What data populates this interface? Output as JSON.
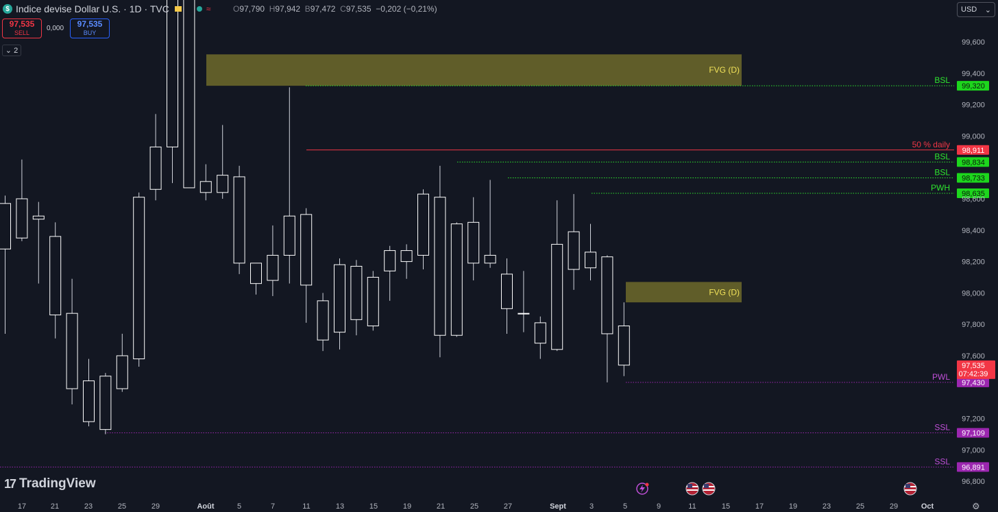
{
  "header": {
    "symbol_badge": "$",
    "title": "Indice devise Dollar U.S. · 1D · TVC",
    "ohlc": {
      "o_label": "O",
      "o": "97,790",
      "h_label": "H",
      "h": "97,942",
      "b_label": "B",
      "b": "97,472",
      "c_label": "C",
      "c": "97,535",
      "change": "−0,202 (−0,21%)"
    }
  },
  "trade": {
    "sell_price": "97,535",
    "sell_label": "SELL",
    "spread": "0,000",
    "buy_price": "97,535",
    "buy_label": "BUY"
  },
  "indicators_toggle": {
    "label": "2"
  },
  "currency_select": {
    "value": "USD"
  },
  "watermark": {
    "text": "TradingView"
  },
  "colors": {
    "background": "#131722",
    "green": "#22ab94",
    "lime": "#2ee62e",
    "red": "#f23645",
    "purple": "#9c27b0",
    "fvg": "#6e6a2a",
    "candle": "#ffffff"
  },
  "chart_data": {
    "type": "candlestick",
    "symbol": "Indice devise Dollar U.S.",
    "interval": "1D",
    "ylim": [
      96.75,
      99.85
    ],
    "y_ticks": [
      "99,600",
      "99,400",
      "99,200",
      "99,000",
      "98,600",
      "98,400",
      "98,200",
      "98,000",
      "97,800",
      "97,600",
      "97,200",
      "97,000",
      "96,800"
    ],
    "x_labels": [
      "17",
      "21",
      "23",
      "25",
      "29",
      "Août",
      "5",
      "7",
      "11",
      "13",
      "15",
      "19",
      "21",
      "25",
      "27",
      "Sept",
      "3",
      "5",
      "9",
      "11",
      "15",
      "17",
      "19",
      "23",
      "25",
      "29",
      "Oct"
    ],
    "candles": [
      {
        "o": 98.28,
        "h": 98.62,
        "l": 97.74,
        "c": 98.57
      },
      {
        "o": 98.35,
        "h": 98.85,
        "l": 98.33,
        "c": 98.6
      },
      {
        "o": 98.47,
        "h": 98.58,
        "l": 98.06,
        "c": 98.49
      },
      {
        "o": 97.86,
        "h": 98.45,
        "l": 97.71,
        "c": 98.36
      },
      {
        "o": 97.39,
        "h": 98.09,
        "l": 97.29,
        "c": 97.87
      },
      {
        "o": 97.18,
        "h": 97.58,
        "l": 97.15,
        "c": 97.44
      },
      {
        "o": 97.47,
        "h": 97.49,
        "l": 97.1,
        "c": 97.13
      },
      {
        "o": 97.39,
        "h": 97.74,
        "l": 97.37,
        "c": 97.6
      },
      {
        "o": 97.58,
        "h": 98.64,
        "l": 97.53,
        "c": 98.61
      },
      {
        "o": 98.66,
        "h": 99.14,
        "l": 98.59,
        "c": 98.93
      },
      {
        "o": 98.93,
        "h": 99.95,
        "l": 98.7,
        "c": 99.95
      },
      {
        "o": 99.95,
        "h": 99.95,
        "l": 98.67,
        "c": 98.67
      },
      {
        "o": 98.71,
        "h": 98.82,
        "l": 98.59,
        "c": 98.64
      },
      {
        "o": 98.75,
        "h": 99.07,
        "l": 98.6,
        "c": 98.64
      },
      {
        "o": 98.74,
        "h": 98.81,
        "l": 98.12,
        "c": 98.19
      },
      {
        "o": 98.19,
        "h": 98.18,
        "l": 97.99,
        "c": 98.06
      },
      {
        "o": 98.08,
        "h": 98.43,
        "l": 97.98,
        "c": 98.24
      },
      {
        "o": 98.24,
        "h": 99.31,
        "l": 98.06,
        "c": 98.49
      },
      {
        "o": 98.5,
        "h": 98.54,
        "l": 97.81,
        "c": 98.05
      },
      {
        "o": 97.95,
        "h": 98.0,
        "l": 97.63,
        "c": 97.7
      },
      {
        "o": 97.75,
        "h": 98.22,
        "l": 97.64,
        "c": 98.18
      },
      {
        "o": 98.17,
        "h": 98.21,
        "l": 97.73,
        "c": 97.83
      },
      {
        "o": 97.79,
        "h": 98.14,
        "l": 97.76,
        "c": 98.1
      },
      {
        "o": 98.14,
        "h": 98.3,
        "l": 97.95,
        "c": 98.27
      },
      {
        "o": 98.27,
        "h": 98.31,
        "l": 98.09,
        "c": 98.2
      },
      {
        "o": 98.24,
        "h": 98.66,
        "l": 98.15,
        "c": 98.63
      },
      {
        "o": 98.61,
        "h": 98.81,
        "l": 97.59,
        "c": 97.73
      },
      {
        "o": 97.73,
        "h": 98.45,
        "l": 97.72,
        "c": 98.44
      },
      {
        "o": 98.19,
        "h": 98.61,
        "l": 98.08,
        "c": 98.45
      },
      {
        "o": 98.24,
        "h": 98.72,
        "l": 98.16,
        "c": 98.19
      },
      {
        "o": 98.12,
        "h": 98.22,
        "l": 97.74,
        "c": 97.9
      },
      {
        "o": 97.87,
        "h": 98.14,
        "l": 97.75,
        "c": 97.87
      },
      {
        "o": 97.81,
        "h": 97.85,
        "l": 97.58,
        "c": 97.68
      },
      {
        "o": 97.64,
        "h": 98.59,
        "l": 97.63,
        "c": 98.31
      },
      {
        "o": 98.15,
        "h": 98.63,
        "l": 98.02,
        "c": 98.39
      },
      {
        "o": 98.26,
        "h": 98.44,
        "l": 98.08,
        "c": 98.16
      },
      {
        "o": 98.23,
        "h": 98.24,
        "l": 97.43,
        "c": 97.74
      },
      {
        "o": 97.79,
        "h": 97.94,
        "l": 97.47,
        "c": 97.54
      }
    ],
    "levels": [
      {
        "label": "BSL",
        "price": "99,320",
        "value": 99.32,
        "color": "#2ee62e",
        "text_color": "#2ee62e",
        "style": "dotted"
      },
      {
        "label": "50 % daily",
        "price": "98,911",
        "value": 98.911,
        "color": "#f23645",
        "text_color": "#f23645",
        "style": "solid"
      },
      {
        "label": "BSL",
        "price": "98,834",
        "value": 98.834,
        "color": "#2ee62e",
        "text_color": "#2ee62e",
        "style": "dotted"
      },
      {
        "label": "BSL",
        "price": "98,733",
        "value": 98.733,
        "color": "#2ee62e",
        "text_color": "#2ee62e",
        "style": "dotted"
      },
      {
        "label": "PWH",
        "price": "98,635",
        "value": 98.635,
        "color": "#2ee62e",
        "text_color": "#2ee62e",
        "style": "dotted"
      },
      {
        "label": "PWL",
        "price": "97,430",
        "value": 97.43,
        "color": "#9c27b0",
        "text_color": "#c04fd8",
        "style": "dotted"
      },
      {
        "label": "SSL",
        "price": "97,109",
        "value": 97.109,
        "color": "#9c27b0",
        "text_color": "#c04fd8",
        "style": "dotted"
      },
      {
        "label": "SSL",
        "price": "96,891",
        "value": 96.891,
        "color": "#9c27b0",
        "text_color": "#c04fd8",
        "style": "dotted"
      }
    ],
    "zones": [
      {
        "label": "FVG (D)",
        "top": 99.52,
        "bottom": 99.32
      },
      {
        "label": "FVG (D)",
        "top": 98.07,
        "bottom": 97.94
      }
    ],
    "last_price": {
      "price": "97,535",
      "countdown": "07:42:39",
      "value": 97.535
    }
  }
}
